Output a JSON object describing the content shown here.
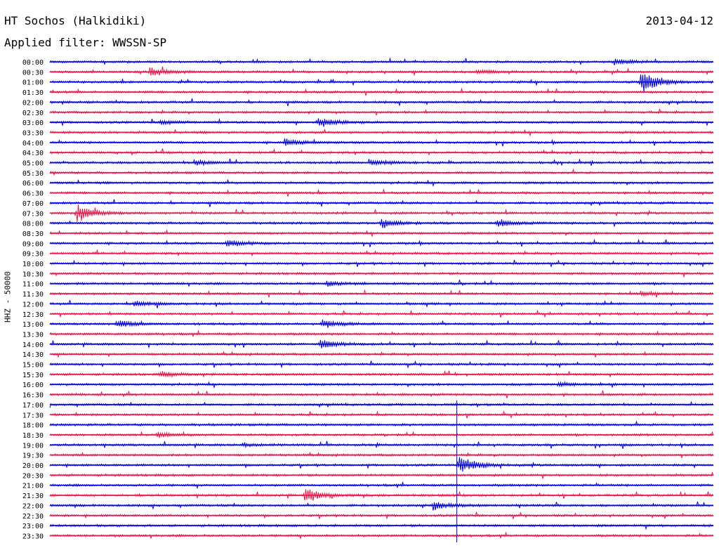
{
  "header": {
    "station": "HT Sochos (Halkidiki)",
    "date": "2013-04-12",
    "filter": "Applied filter: WWSSN-SP"
  },
  "chart_data": {
    "type": "line",
    "title": "HT Sochos (Halkidiki)",
    "ylabel": "HHZ - 50000",
    "colors": [
      "#0000e0",
      "#e8174a"
    ],
    "rows": [
      "00:00",
      "00:30",
      "01:00",
      "01:30",
      "02:00",
      "02:30",
      "03:00",
      "03:30",
      "04:00",
      "04:30",
      "05:00",
      "05:30",
      "06:00",
      "06:30",
      "07:00",
      "07:30",
      "08:00",
      "08:30",
      "09:00",
      "09:30",
      "10:00",
      "10:30",
      "11:00",
      "11:30",
      "12:00",
      "12:30",
      "13:00",
      "13:30",
      "14:00",
      "14:30",
      "15:00",
      "15:30",
      "16:00",
      "16:30",
      "17:00",
      "17:30",
      "18:00",
      "18:30",
      "19:00",
      "19:30",
      "20:00",
      "20:30",
      "21:00",
      "21:30",
      "22:00",
      "22:30",
      "23:00",
      "23:30"
    ],
    "events": [
      {
        "row": "00:00",
        "minute": 25.5,
        "amp": 0.5
      },
      {
        "row": "00:30",
        "minute": 4.5,
        "amp": 0.7
      },
      {
        "row": "00:30",
        "minute": 19.3,
        "amp": 0.35
      },
      {
        "row": "01:00",
        "minute": 26.7,
        "amp": 2.2
      },
      {
        "row": "03:00",
        "minute": 12.1,
        "amp": 0.9
      },
      {
        "row": "03:00",
        "minute": 5.0,
        "amp": 0.35
      },
      {
        "row": "04:00",
        "minute": 10.6,
        "amp": 0.6
      },
      {
        "row": "05:00",
        "minute": 6.5,
        "amp": 0.45
      },
      {
        "row": "05:00",
        "minute": 14.5,
        "amp": 0.5
      },
      {
        "row": "07:30",
        "minute": 1.2,
        "amp": 1.6
      },
      {
        "row": "08:00",
        "minute": 15.0,
        "amp": 0.8
      },
      {
        "row": "08:00",
        "minute": 20.2,
        "amp": 0.7
      },
      {
        "row": "09:00",
        "minute": 8.0,
        "amp": 0.55
      },
      {
        "row": "11:00",
        "minute": 12.5,
        "amp": 0.45
      },
      {
        "row": "11:30",
        "minute": 26.7,
        "amp": 0.4
      },
      {
        "row": "12:00",
        "minute": 3.8,
        "amp": 0.5
      },
      {
        "row": "13:00",
        "minute": 3.0,
        "amp": 0.6
      },
      {
        "row": "13:00",
        "minute": 12.3,
        "amp": 0.7
      },
      {
        "row": "14:00",
        "minute": 12.2,
        "amp": 0.9
      },
      {
        "row": "15:30",
        "minute": 5.0,
        "amp": 0.55
      },
      {
        "row": "16:00",
        "minute": 23.0,
        "amp": 0.35
      },
      {
        "row": "18:30",
        "minute": 4.8,
        "amp": 0.4
      },
      {
        "row": "19:00",
        "minute": 8.7,
        "amp": 0.3
      },
      {
        "row": "20:00",
        "minute": 18.5,
        "amp": 1.5
      },
      {
        "row": "21:30",
        "minute": 11.5,
        "amp": 1.2
      },
      {
        "row": "22:00",
        "minute": 17.3,
        "amp": 0.75
      }
    ],
    "xlim": [
      0,
      30
    ],
    "grid": false,
    "legend": "none"
  }
}
